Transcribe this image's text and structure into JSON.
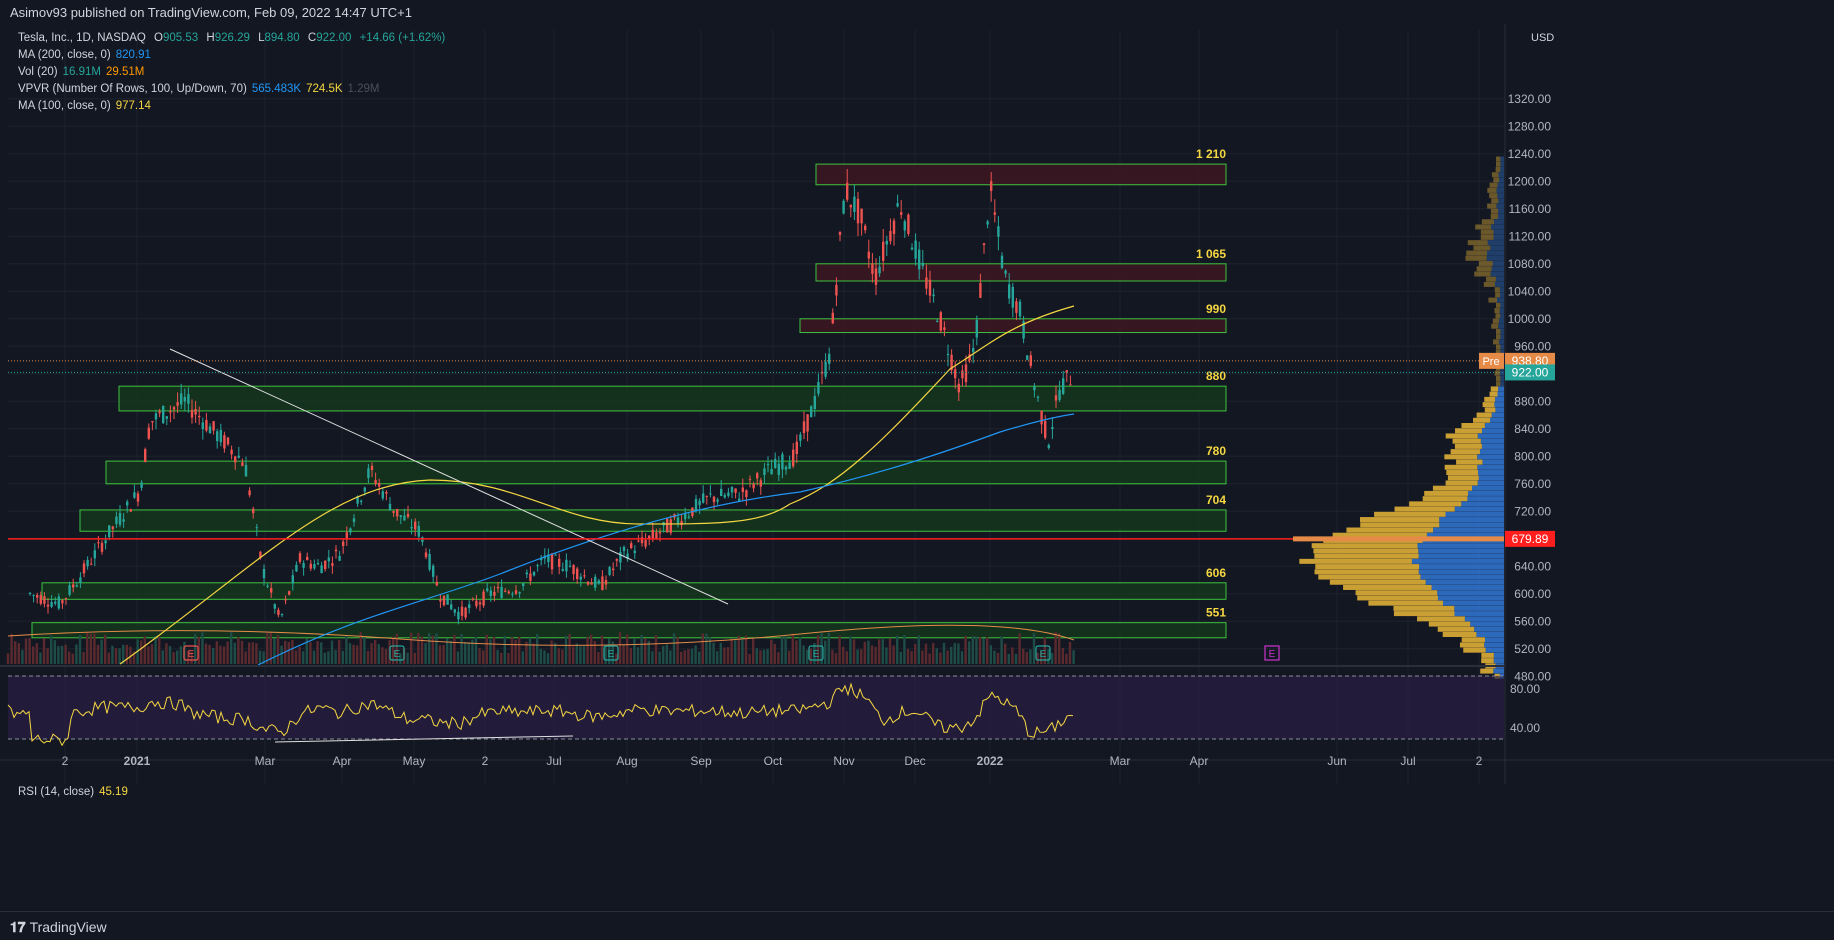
{
  "header": {
    "published": "Asimov93 published on TradingView.com, Feb 09, 2022 14:47 UTC+1"
  },
  "legend": {
    "symbol": "Tesla, Inc., 1D, NASDAQ",
    "ohlc": {
      "o_label": "O",
      "o": "905.53",
      "h_label": "H",
      "h": "926.29",
      "l_label": "L",
      "l": "894.80",
      "c_label": "C",
      "c": "922.00",
      "change": "+14.66 (+1.62%)"
    },
    "ma200": {
      "label": "MA (200, close, 0)",
      "value": "820.91"
    },
    "vol": {
      "label": "Vol (20)",
      "v1": "16.91M",
      "v2": "29.51M"
    },
    "vpvr": {
      "label": "VPVR (Number Of Rows, 100, Up/Down, 70)",
      "v1": "565.483K",
      "v2": "724.5K",
      "v3": "1.29M"
    },
    "ma100": {
      "label": "MA (100, close, 0)",
      "value": "977.14"
    }
  },
  "price_axis": {
    "currency": "USD",
    "ticks": [
      "1320.00",
      "1280.00",
      "1240.00",
      "1200.00",
      "1160.00",
      "1120.00",
      "1080.00",
      "1040.00",
      "1000.00",
      "960.00",
      "880.00",
      "840.00",
      "800.00",
      "760.00",
      "720.00",
      "640.00",
      "600.00",
      "560.00",
      "520.00",
      "480.00"
    ],
    "pre_label": "Pre",
    "pre_price": "938.80",
    "last_price": "922.00",
    "red_line_price": "679.89"
  },
  "zones": [
    {
      "label": "1 210",
      "low": 1195,
      "high": 1225
    },
    {
      "label": "1 065",
      "low": 1055,
      "high": 1080
    },
    {
      "label": "990",
      "low": 980,
      "high": 1000
    },
    {
      "label": "880",
      "low": 866,
      "high": 902
    },
    {
      "label": "780",
      "low": 760,
      "high": 793
    },
    {
      "label": "704",
      "low": 691,
      "high": 722
    },
    {
      "label": "606",
      "low": 592,
      "high": 616
    },
    {
      "label": "551",
      "low": 536,
      "high": 558
    }
  ],
  "time_axis": [
    "2",
    "2021",
    "Mar",
    "Apr",
    "May",
    "2",
    "Jul",
    "Aug",
    "Sep",
    "Oct",
    "Nov",
    "Dec",
    "2022",
    "Mar",
    "Apr",
    "Jun",
    "Jul",
    "2"
  ],
  "rsi": {
    "label": "RSI (14, close)",
    "value": "45.19",
    "ticks": [
      "80.00",
      "40.00"
    ]
  },
  "event_markers": [
    "E",
    "E",
    "E",
    "E",
    "E",
    "E"
  ],
  "colors": {
    "bg": "#131722",
    "up": "#26a69a",
    "down": "#ef5350",
    "ma100": "#f5d742",
    "ma200": "#2196f3",
    "zone_fill": "#163b1c",
    "zone_stroke": "#3ec33e",
    "zone_top_fill": "#3d1620",
    "rsi_line": "#f5d742",
    "rsi_band": "#2a1f44",
    "vpvr_up": "#2e6ec4",
    "vpvr_down": "#d4a636"
  },
  "footer": {
    "brand": "TradingView"
  }
}
